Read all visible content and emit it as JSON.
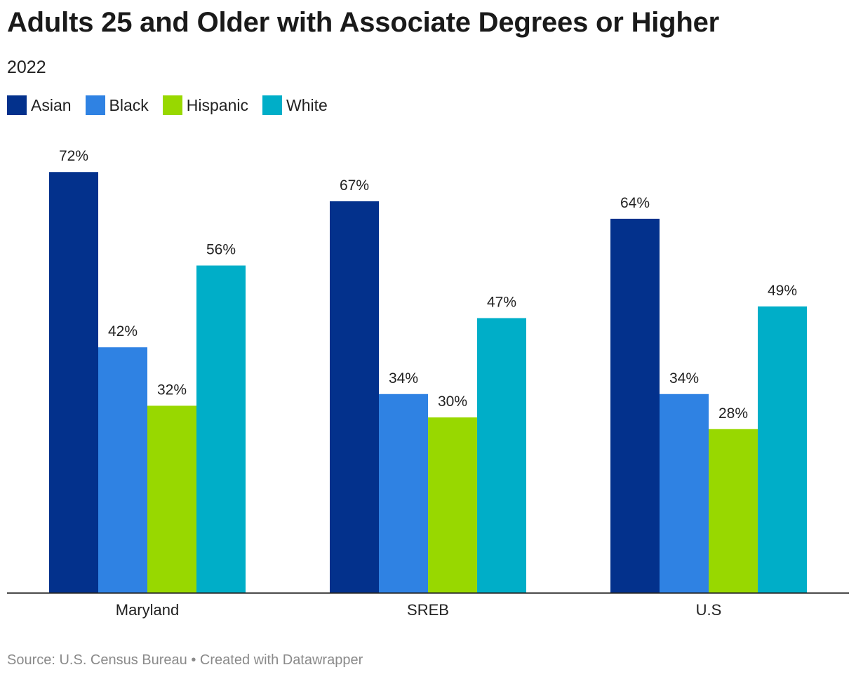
{
  "footer": "Source: U.S. Census Bureau • Created with Datawrapper",
  "chart_data": {
    "type": "bar",
    "title": "Adults 25 and Older with Associate Degrees or Higher",
    "subtitle": "2022",
    "categories": [
      "Maryland",
      "SREB",
      "U.S"
    ],
    "series": [
      {
        "name": "Asian",
        "color": "#03318c",
        "values": [
          72,
          67,
          64
        ],
        "labels": [
          "72%",
          "67%",
          "64%"
        ]
      },
      {
        "name": "Black",
        "color": "#2f82e3",
        "values": [
          42,
          34,
          34
        ],
        "labels": [
          "42%",
          "34%",
          "34%"
        ]
      },
      {
        "name": "Hispanic",
        "color": "#98d800",
        "values": [
          32,
          30,
          28
        ],
        "labels": [
          "32%",
          "30%",
          "28%"
        ]
      },
      {
        "name": "White",
        "color": "#00aec8",
        "values": [
          56,
          47,
          49
        ],
        "labels": [
          "56%",
          "47%",
          "49%"
        ]
      }
    ],
    "ylim": [
      0,
      100
    ],
    "xlabel": "",
    "ylabel": "",
    "grid": false,
    "legend_position": "top-left"
  }
}
